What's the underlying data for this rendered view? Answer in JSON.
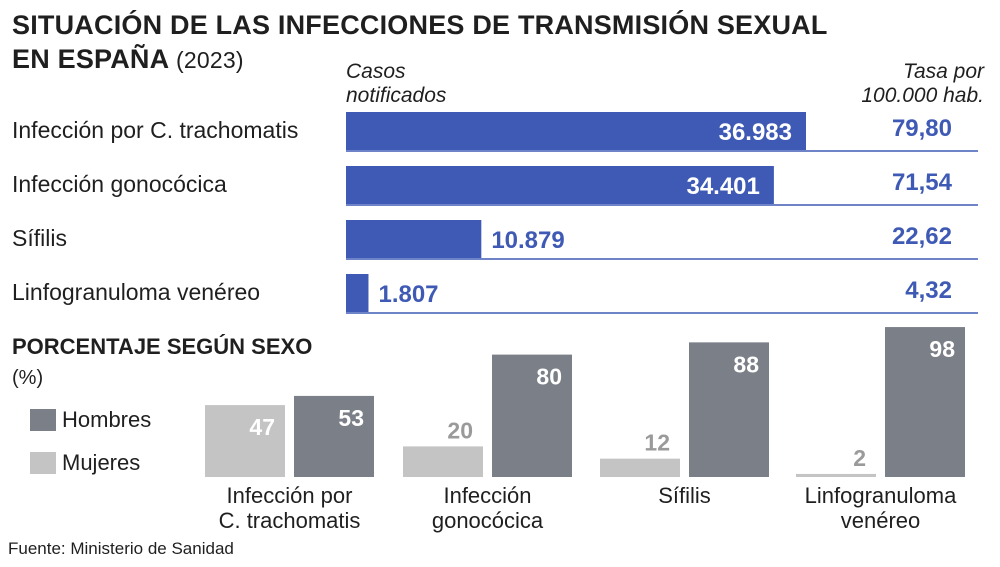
{
  "title_line1": "SITUACIÓN DE LAS INFECCIONES DE TRANSMISIÓN SEXUAL",
  "title_line2": "EN ESPAÑA",
  "title_year": "(2023)",
  "header_cases_line1": "Casos",
  "header_cases_line2": "notificados",
  "header_rate_line1": "Tasa por",
  "header_rate_line2": "100.000 hab.",
  "source": "Fuente: Ministerio de Sanidad",
  "colors": {
    "cases_bar": "#3f5ab5",
    "hombres": "#7b7f87",
    "mujeres": "#c4c4c4",
    "rule": "#3f5ab5"
  },
  "chart_data": [
    {
      "type": "bar",
      "orientation": "horizontal",
      "categories": [
        "Infección por C. trachomatis",
        "Infección gonocócica",
        "Sífilis",
        "Linfogranuloma venéreo"
      ],
      "values": [
        36983,
        34401,
        10879,
        1807
      ],
      "value_labels": [
        "36.983",
        "34.401",
        "10.879",
        "1.807"
      ],
      "rates": [
        "79,80",
        "71,54",
        "22,62",
        "4,32"
      ],
      "xlim": [
        0,
        40000
      ]
    },
    {
      "type": "bar",
      "title": "PORCENTAJE SEGÚN SEXO",
      "ylabel": "(%)",
      "categories": [
        [
          "Infección por",
          "C. trachomatis"
        ],
        [
          "Infección",
          "gonocócica"
        ],
        [
          "Sífilis"
        ],
        [
          "Linfogranuloma",
          "venéreo"
        ]
      ],
      "series": [
        {
          "name": "Mujeres",
          "values": [
            47,
            20,
            12,
            2
          ]
        },
        {
          "name": "Hombres",
          "values": [
            53,
            80,
            88,
            98
          ]
        }
      ],
      "legend": [
        "Hombres",
        "Mujeres"
      ],
      "ylim": [
        0,
        100
      ]
    }
  ]
}
